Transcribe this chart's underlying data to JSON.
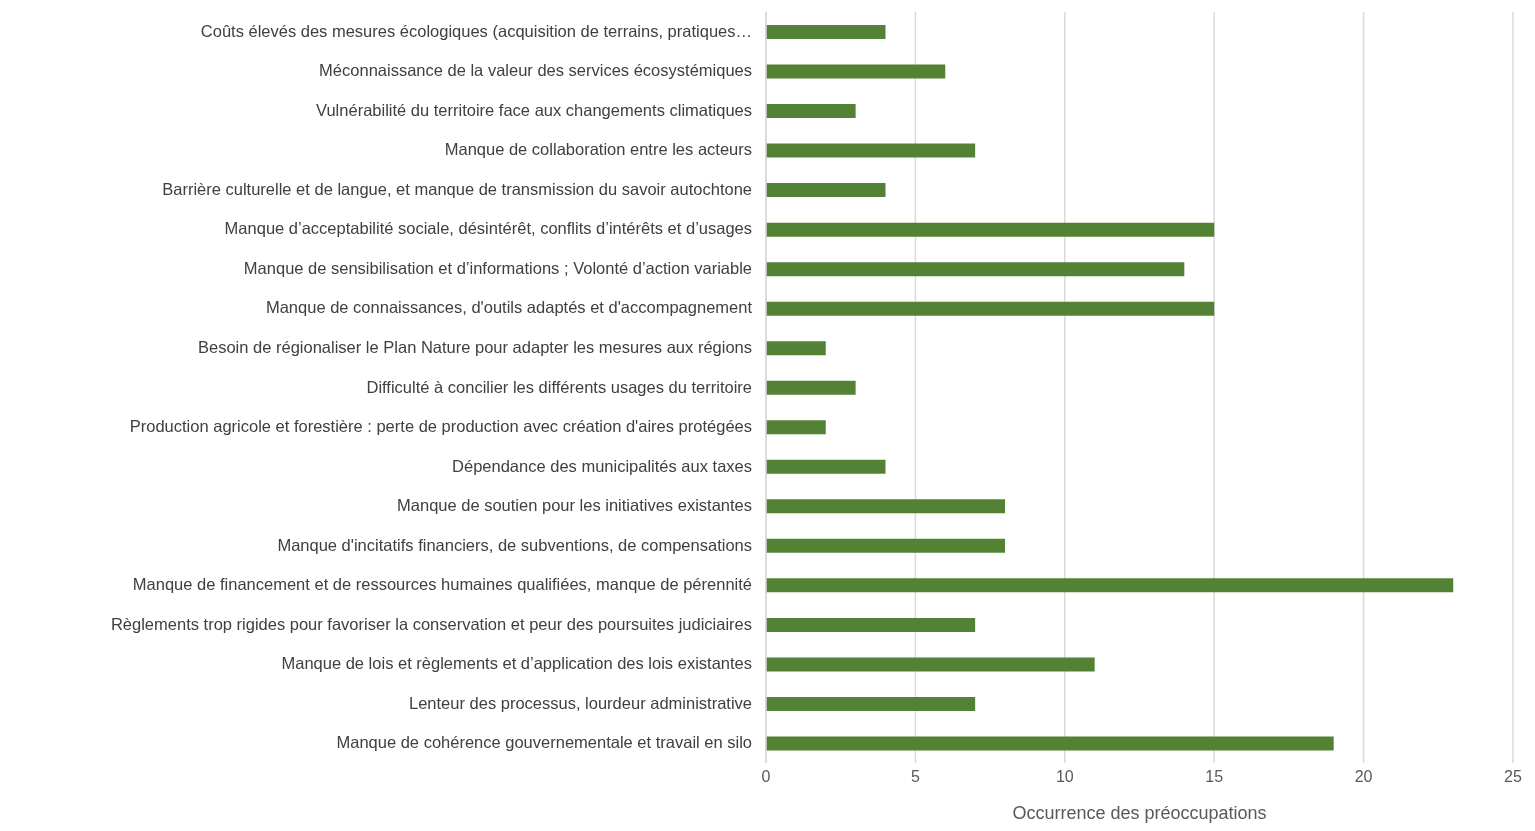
{
  "chart_data": {
    "type": "bar",
    "orientation": "horizontal",
    "xlabel": "Occurrence des préoccupations",
    "categories": [
      "Coûts élevés des mesures écologiques (acquisition de terrains, pratiques…",
      "Méconnaissance de la valeur des services écosystémiques",
      "Vulnérabilité du territoire face aux changements climatiques",
      "Manque de collaboration entre les acteurs",
      "Barrière culturelle et de langue, et manque de transmission du savoir autochtone",
      "Manque d’acceptabilité sociale, désintérêt, conflits d’intérêts et d’usages",
      "Manque de sensibilisation et d’informations ; Volonté d’action variable",
      "Manque de connaissances, d'outils adaptés et d'accompagnement",
      "Besoin de régionaliser le Plan Nature pour adapter les mesures aux régions",
      "Difficulté à concilier les différents usages du territoire",
      "Production agricole et forestière : perte de production avec création d'aires protégées",
      "Dépendance des municipalités aux taxes",
      "Manque de soutien pour les initiatives existantes",
      "Manque d'incitatifs financiers, de subventions, de compensations",
      "Manque de financement et de ressources humaines qualifiées, manque de pérennité",
      "Règlements trop rigides pour favoriser la conservation et peur des poursuites judiciaires",
      "Manque de lois et règlements et d’application des lois existantes",
      "Lenteur des processus, lourdeur administrative",
      "Manque de cohérence gouvernementale et travail en silo"
    ],
    "values": [
      4,
      6,
      3,
      7,
      4,
      15,
      14,
      15,
      2,
      3,
      2,
      4,
      8,
      8,
      23,
      7,
      11,
      7,
      19
    ],
    "color": "#548235",
    "xlim": [
      0,
      25
    ],
    "xticks": [
      0,
      5,
      10,
      15,
      20,
      25
    ],
    "grid": "x"
  }
}
